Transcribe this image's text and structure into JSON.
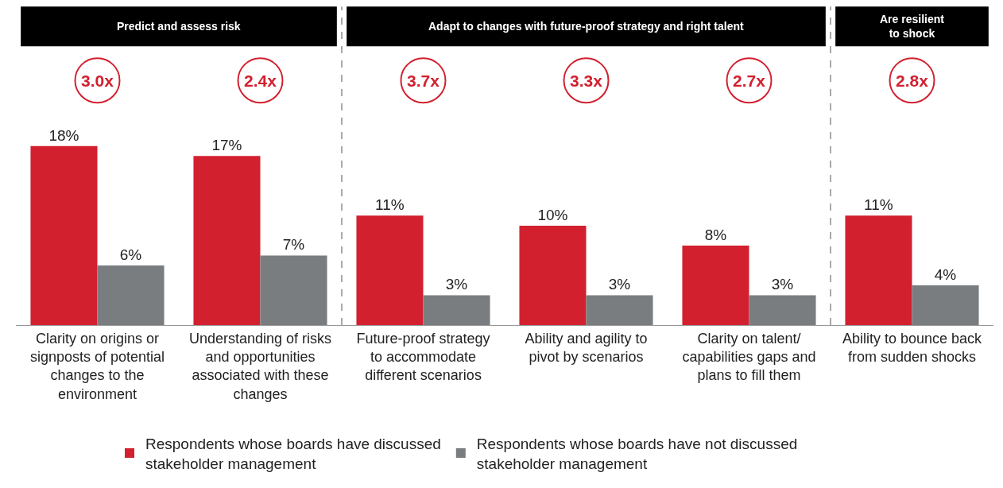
{
  "chart_data": {
    "type": "bar",
    "categories": [
      "Clarity on origins or signposts of potential changes to the environment",
      "Understanding of risks and opportunities associated with these changes",
      "Future-proof strategy to accommodate different scenarios",
      "Ability and agility to pivot by scenarios",
      "Clarity on talent/ capabilities gaps and plans to fill them",
      "Ability to bounce back from sudden shocks"
    ],
    "series": [
      {
        "name": "Respondents whose boards have discussed stakeholder management",
        "color": "#d2202f",
        "values": [
          18,
          17,
          11,
          10,
          8,
          11
        ],
        "value_labels": [
          "18%",
          "17%",
          "11%",
          "10%",
          "8%",
          "11%"
        ]
      },
      {
        "name": "Respondents whose boards have not discussed stakeholder management",
        "color": "#7a7d80",
        "values": [
          6,
          7,
          3,
          3,
          3,
          4
        ],
        "value_labels": [
          "6%",
          "7%",
          "3%",
          "3%",
          "3%",
          "4%"
        ]
      }
    ],
    "annotations": [
      "Predict and assess risk",
      "Adapt to changes with future-proof strategy and right talent",
      "Are resilient to shock",
      "3.0x",
      "2.4x",
      "3.7x",
      "3.3x",
      "2.7x",
      "2.8x"
    ],
    "tick_labels": "x",
    "legend": "bottom"
  }
}
